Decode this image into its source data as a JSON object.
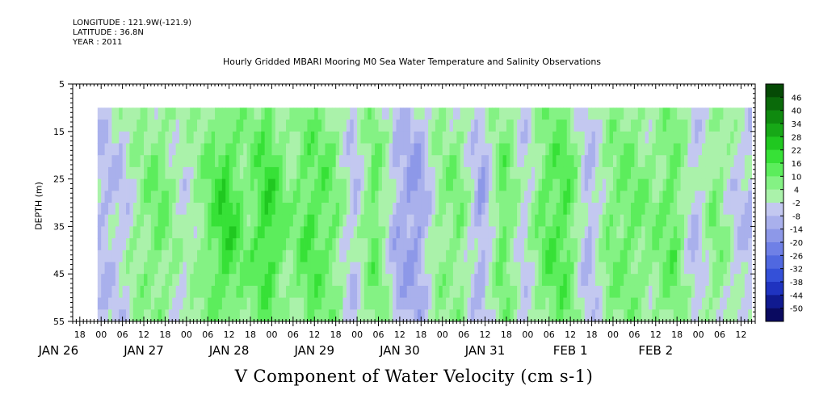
{
  "header": {
    "longitude": "LONGITUDE : 121.9W(-121.9)",
    "latitude": "LATITUDE : 36.8N",
    "year": "YEAR : 2011"
  },
  "chart_data": {
    "type": "heatmap",
    "title": "Hourly Gridded MBARI Mooring M0 Sea Water Temperature and Salinity Observations",
    "xlabel": "V Component of Water Velocity (cm s-1)",
    "ylabel": "DEPTH (m)",
    "x_hours_range": [
      -8,
      184
    ],
    "x_tick_labels": [
      "18",
      "00",
      "06",
      "12",
      "18",
      "00",
      "06",
      "12",
      "18",
      "00",
      "06",
      "12",
      "18",
      "00",
      "06",
      "12",
      "18",
      "00",
      "06",
      "12",
      "18",
      "00",
      "06",
      "12",
      "18",
      "00",
      "06",
      "12",
      "18",
      "00",
      "06",
      "12"
    ],
    "day_labels": [
      {
        "label": "JAN 26",
        "hour": -12
      },
      {
        "label": "JAN 27",
        "hour": 12
      },
      {
        "label": "JAN 28",
        "hour": 36
      },
      {
        "label": "JAN 29",
        "hour": 60
      },
      {
        "label": "JAN 30",
        "hour": 84
      },
      {
        "label": "JAN 31",
        "hour": 108
      },
      {
        "label": "FEB  1",
        "hour": 132
      },
      {
        "label": "FEB  2",
        "hour": 156
      }
    ],
    "ylim": [
      55,
      5
    ],
    "y_ticks": [
      5,
      15,
      25,
      35,
      45,
      55
    ],
    "data_depth_range": [
      10,
      55
    ],
    "data_time_range": [
      -1,
      183
    ],
    "colorbar": {
      "levels": [
        -50,
        -44,
        -38,
        -32,
        -26,
        -20,
        -14,
        -8,
        -2,
        4,
        10,
        16,
        22,
        28,
        34,
        40,
        46
      ],
      "labels": [
        "46",
        "40",
        "34",
        "28",
        "22",
        "16",
        "10",
        "4",
        "-2",
        "-8",
        "-14",
        "-20",
        "-26",
        "-32",
        "-38",
        "-44",
        "-50"
      ],
      "colors": [
        "#0a0a60",
        "#101a90",
        "#1f33c0",
        "#3450d8",
        "#5068e0",
        "#6f80e6",
        "#8d98e8",
        "#a9b0ec",
        "#c3c8f0",
        "#aaf2aa",
        "#84f284",
        "#5ced5c",
        "#37e137",
        "#20c820",
        "#17a817",
        "#0f8a0f",
        "#0a6a0a",
        "#054a05"
      ]
    },
    "velocity_bands": [
      {
        "hour": 1,
        "value": -6
      },
      {
        "hour": 6,
        "value": -4
      },
      {
        "hour": 11,
        "value": 4
      },
      {
        "hour": 17,
        "value": 8
      },
      {
        "hour": 23,
        "value": -2
      },
      {
        "hour": 29,
        "value": 6
      },
      {
        "hour": 35,
        "value": 16
      },
      {
        "hour": 41,
        "value": 6
      },
      {
        "hour": 47,
        "value": 16
      },
      {
        "hour": 53,
        "value": 4
      },
      {
        "hour": 59,
        "value": 12
      },
      {
        "hour": 65,
        "value": 8
      },
      {
        "hour": 71,
        "value": -6
      },
      {
        "hour": 77,
        "value": 10
      },
      {
        "hour": 83,
        "value": -8
      },
      {
        "hour": 89,
        "value": -12
      },
      {
        "hour": 95,
        "value": 4
      },
      {
        "hour": 101,
        "value": 6
      },
      {
        "hour": 107,
        "value": -10
      },
      {
        "hour": 113,
        "value": 10
      },
      {
        "hour": 119,
        "value": -4
      },
      {
        "hour": 125,
        "value": 10
      },
      {
        "hour": 131,
        "value": 12
      },
      {
        "hour": 137,
        "value": -8
      },
      {
        "hour": 143,
        "value": 6
      },
      {
        "hour": 149,
        "value": 8
      },
      {
        "hour": 155,
        "value": 4
      },
      {
        "hour": 161,
        "value": 10
      },
      {
        "hour": 167,
        "value": -6
      },
      {
        "hour": 173,
        "value": 6
      },
      {
        "hour": 179,
        "value": -4
      },
      {
        "hour": 183,
        "value": -6
      }
    ]
  }
}
